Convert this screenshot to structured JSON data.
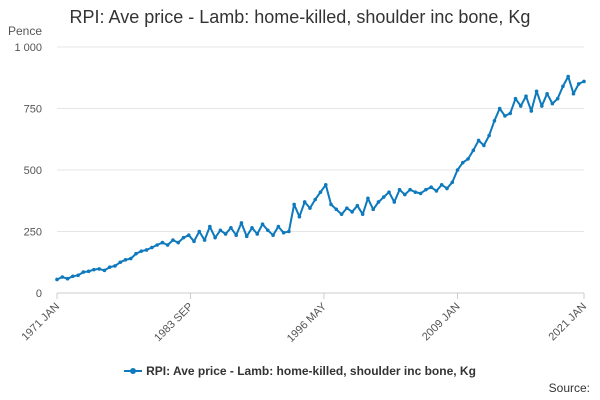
{
  "chart_data": {
    "type": "line",
    "title": "RPI: Ave price - Lamb: home-killed, shoulder inc bone, Kg",
    "ylabel": "Pence",
    "xlabel": "",
    "ylim": [
      0,
      1000
    ],
    "yticks": [
      0,
      250,
      500,
      750,
      1000
    ],
    "ytick_labels": [
      "0",
      "250",
      "500",
      "750",
      "1 000"
    ],
    "xlim": [
      1971.0,
      2021.0
    ],
    "xticks": [
      1971.0,
      1983.67,
      1996.33,
      2009.0,
      2021.0
    ],
    "xtick_labels": [
      "1971 JAN",
      "1983 SEP",
      "1996 MAY",
      "2009 JAN",
      "2021 JAN"
    ],
    "grid": true,
    "legend_position": "bottom",
    "series": [
      {
        "name": "RPI: Ave price - Lamb: home-killed, shoulder inc bone, Kg",
        "color": "#0e79bc",
        "x": [
          1971.0,
          1971.5,
          1972.0,
          1972.5,
          1973.0,
          1973.5,
          1974.0,
          1974.5,
          1975.0,
          1975.5,
          1976.0,
          1976.5,
          1977.0,
          1977.5,
          1978.0,
          1978.5,
          1979.0,
          1979.5,
          1980.0,
          1980.5,
          1981.0,
          1981.5,
          1982.0,
          1982.5,
          1983.0,
          1983.5,
          1984.0,
          1984.5,
          1985.0,
          1985.5,
          1986.0,
          1986.5,
          1987.0,
          1987.5,
          1988.0,
          1988.5,
          1989.0,
          1989.5,
          1990.0,
          1990.5,
          1991.0,
          1991.5,
          1992.0,
          1992.5,
          1993.0,
          1993.5,
          1994.0,
          1994.5,
          1995.0,
          1995.5,
          1996.0,
          1996.5,
          1997.0,
          1997.5,
          1998.0,
          1998.5,
          1999.0,
          1999.5,
          2000.0,
          2000.5,
          2001.0,
          2001.5,
          2002.0,
          2002.5,
          2003.0,
          2003.5,
          2004.0,
          2004.5,
          2005.0,
          2005.5,
          2006.0,
          2006.5,
          2007.0,
          2007.5,
          2008.0,
          2008.5,
          2009.0,
          2009.5,
          2010.0,
          2010.5,
          2011.0,
          2011.5,
          2012.0,
          2012.5,
          2013.0,
          2013.5,
          2014.0,
          2014.5,
          2015.0,
          2015.5,
          2016.0,
          2016.5,
          2017.0,
          2017.5,
          2018.0,
          2018.5,
          2019.0,
          2019.5,
          2020.0,
          2020.5,
          2021.0
        ],
        "values": [
          55,
          65,
          58,
          68,
          72,
          85,
          88,
          95,
          98,
          92,
          105,
          110,
          125,
          135,
          140,
          160,
          170,
          175,
          185,
          195,
          205,
          195,
          215,
          205,
          225,
          235,
          210,
          250,
          215,
          270,
          225,
          255,
          240,
          265,
          235,
          285,
          230,
          265,
          240,
          280,
          255,
          235,
          270,
          245,
          250,
          360,
          310,
          370,
          345,
          380,
          410,
          440,
          360,
          340,
          320,
          345,
          330,
          355,
          320,
          385,
          340,
          370,
          390,
          410,
          370,
          420,
          400,
          420,
          410,
          405,
          420,
          430,
          415,
          440,
          425,
          450,
          500,
          530,
          545,
          580,
          620,
          600,
          640,
          700,
          750,
          720,
          730,
          790,
          760,
          800,
          740,
          820,
          760,
          810,
          770,
          790,
          840,
          880,
          810,
          850,
          860
        ]
      }
    ]
  },
  "footer": {
    "source_label": "Source:"
  }
}
